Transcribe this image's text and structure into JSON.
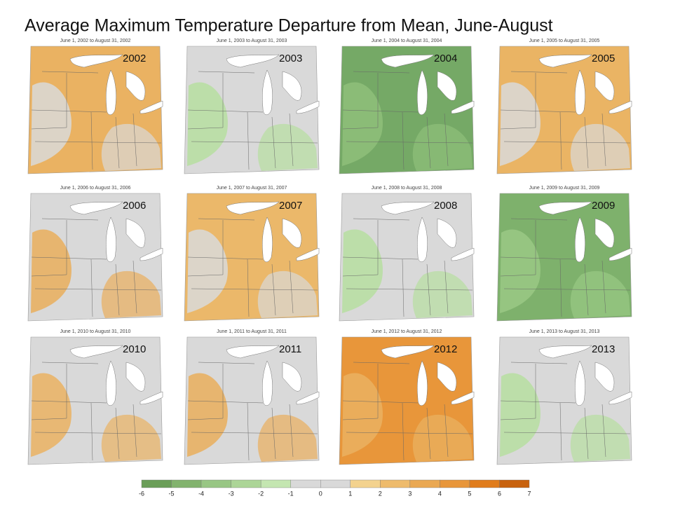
{
  "title": "Average Maximum Temperature Departure from Mean, June-August",
  "panels": [
    {
      "year": "2002",
      "caption": "June 1, 2002 to August 31, 2002",
      "colors": [
        "#eab262",
        "#d9d9d9"
      ]
    },
    {
      "year": "2003",
      "caption": "June 1, 2003 to August 31, 2003",
      "colors": [
        "#d9d9d9",
        "#b6dea0"
      ]
    },
    {
      "year": "2004",
      "caption": "June 1, 2004 to August 31, 2004",
      "colors": [
        "#75a966",
        "#8fc07a"
      ]
    },
    {
      "year": "2005",
      "caption": "June 1, 2005 to August 31, 2005",
      "colors": [
        "#eab464",
        "#d9d9d9"
      ]
    },
    {
      "year": "2006",
      "caption": "June 1, 2006 to August 31, 2006",
      "colors": [
        "#d9d9d9",
        "#e9ae5c"
      ]
    },
    {
      "year": "2007",
      "caption": "June 1, 2007 to August 31, 2007",
      "colors": [
        "#ebb86a",
        "#d9d9d9"
      ]
    },
    {
      "year": "2008",
      "caption": "June 1, 2008 to August 31, 2008",
      "colors": [
        "#d9d9d9",
        "#b6dea0"
      ]
    },
    {
      "year": "2009",
      "caption": "June 1, 2009 to August 31, 2009",
      "colors": [
        "#7eb16c",
        "#9ac985"
      ]
    },
    {
      "year": "2010",
      "caption": "June 1, 2010 to August 31, 2010",
      "colors": [
        "#d9d9d9",
        "#eab262"
      ]
    },
    {
      "year": "2011",
      "caption": "June 1, 2011 to August 31, 2011",
      "colors": [
        "#d9d9d9",
        "#e9ae5c"
      ]
    },
    {
      "year": "2012",
      "caption": "June 1, 2012 to August 31, 2012",
      "colors": [
        "#e8963a",
        "#eab262"
      ]
    },
    {
      "year": "2013",
      "caption": "June 1, 2013 to August 31, 2013",
      "colors": [
        "#d9d9d9",
        "#b6dea0"
      ]
    }
  ],
  "legend": {
    "labels": [
      "-6",
      "-5",
      "-4",
      "-3",
      "-2",
      "-1",
      "0",
      "1",
      "2",
      "3",
      "4",
      "5",
      "6",
      "7"
    ],
    "colors": [
      "#6a9e58",
      "#82b36e",
      "#98c684",
      "#acd597",
      "#c4e6b1",
      "#d9d9d9",
      "#d9d9d9",
      "#f3d28e",
      "#eebb6c",
      "#eaa852",
      "#e8963a",
      "#e07c1c",
      "#c8620e"
    ]
  }
}
